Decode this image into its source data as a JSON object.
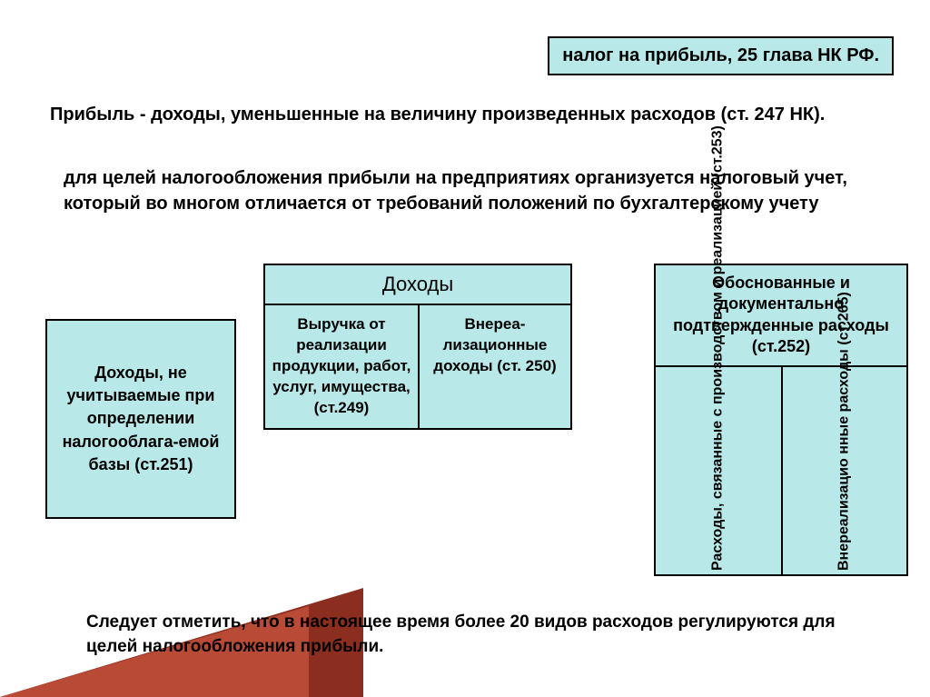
{
  "title": "налог на прибыль, 25 глава НК РФ.",
  "para1": "Прибыль - доходы, уменьшенные на величину произведенных расходов (ст. 247 НК).",
  "para2": "для целей налогообложения прибыли на предприятиях организуется налоговый учет, который во многом отличается от требований положений по бухгалтерскому учету",
  "left_box": "Доходы, не учитываемые при определении налогооблага-емой базы (ст.251)",
  "mid": {
    "header": "Доходы",
    "col1": "Выручка от реализации продукции, работ, услуг, имущества, (ст.249)",
    "col2": "Внереа-лизационные доходы (ст. 250)"
  },
  "right": {
    "header": "Обоснованные и документально подтвержденные расходы (ст.252)",
    "col1": "Расходы, связанные с производством и реализацией (ст.253)",
    "col2": "Внереализацио нные расходы (ст 265)"
  },
  "bottom": "Следует отметить, что в настоящее время более 20 видов расходов регулируются для целей налогообложения прибыли.",
  "colors": {
    "box_bg": "#b8e8e8",
    "border": "#000000",
    "triangle_dark": "#8b2e1f",
    "triangle_light": "#b84a36"
  }
}
